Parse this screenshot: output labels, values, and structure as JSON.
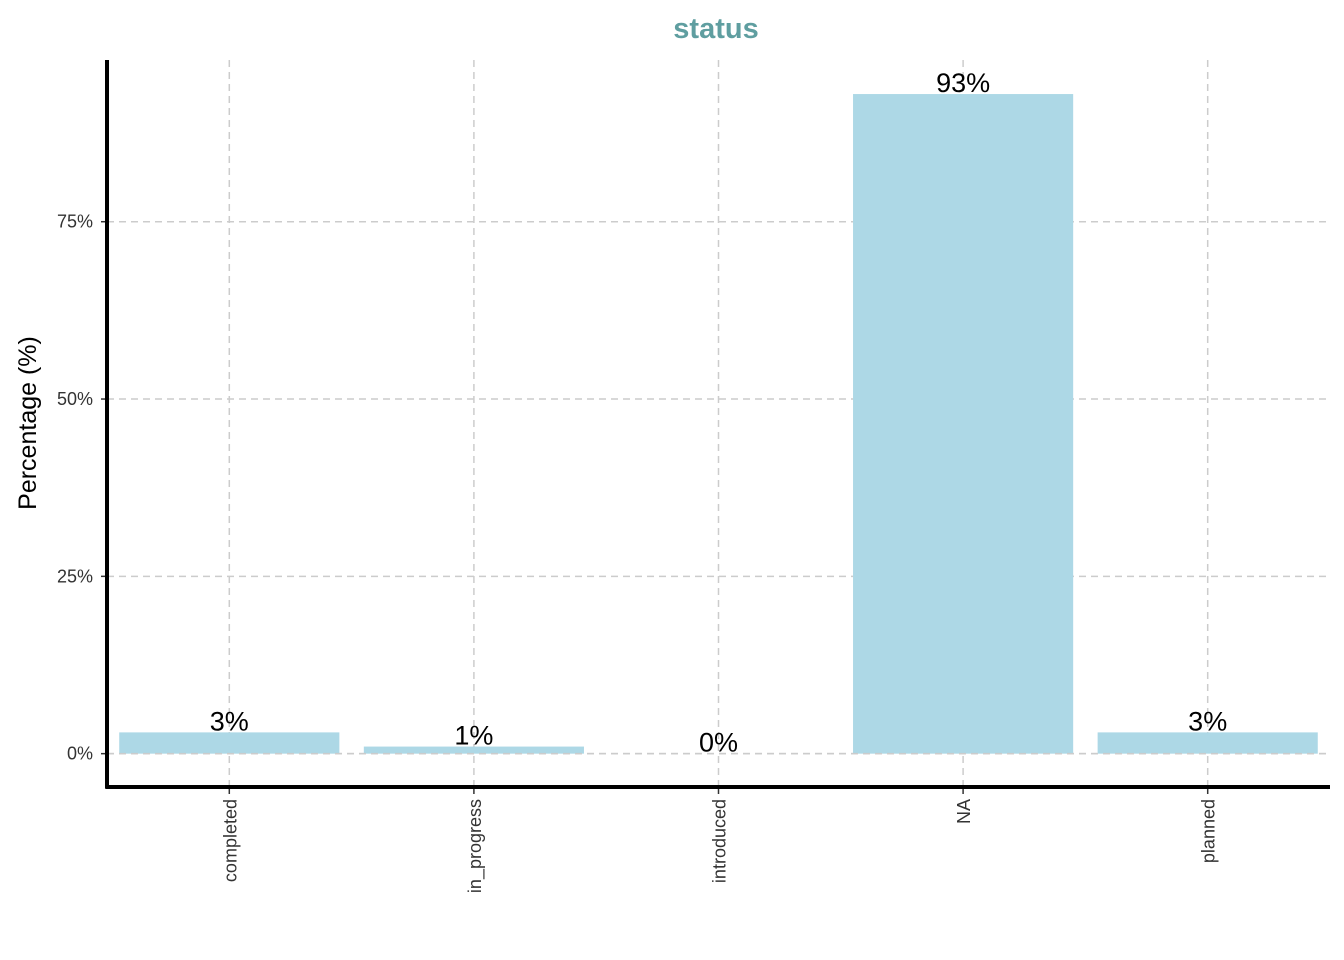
{
  "colors": {
    "bar": "#add8e6",
    "title": "#5f9ea0",
    "grid": "#cccccc",
    "axis": "#000000"
  },
  "chart_data": {
    "type": "bar",
    "title": "status",
    "xlabel": "",
    "ylabel": "Percentage (%)",
    "categories": [
      "completed",
      "in_progress",
      "introduced",
      "NA",
      "planned"
    ],
    "values": [
      3,
      1,
      0,
      93,
      3
    ],
    "data_labels": [
      "3%",
      "1%",
      "0%",
      "93%",
      "3%"
    ],
    "yticks": [
      {
        "value": 0,
        "label": "0%"
      },
      {
        "value": 25,
        "label": "25%"
      },
      {
        "value": 50,
        "label": "50%"
      },
      {
        "value": 75,
        "label": "75%"
      }
    ],
    "ylim": [
      -4.7,
      97.8
    ],
    "grid": true,
    "grid_style": "dashed",
    "x_tick_rotation": "vertical"
  }
}
